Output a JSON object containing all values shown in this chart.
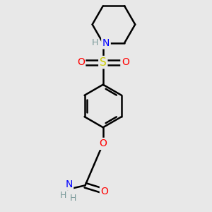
{
  "background_color": "#e8e8e8",
  "atom_colors": {
    "C": "#000000",
    "H": "#7a9a9a",
    "N": "#0000ff",
    "O": "#ff0000",
    "S": "#cccc00"
  },
  "bond_color": "#000000",
  "bond_width": 1.8,
  "figsize": [
    3.0,
    3.0
  ],
  "dpi": 100,
  "xlim": [
    -1.8,
    2.0
  ],
  "ylim": [
    -3.5,
    3.5
  ]
}
